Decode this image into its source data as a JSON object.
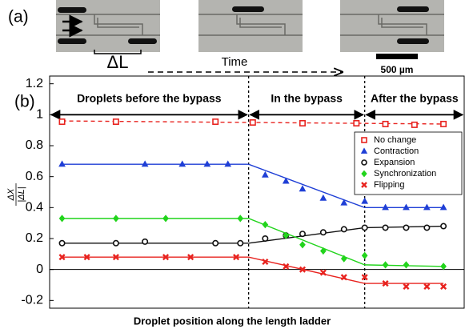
{
  "panel_a": {
    "label": "(a)",
    "delta_label": "ΔL",
    "time_label": "Time",
    "scale_label": "500 µm"
  },
  "chart_data": {
    "type": "scatter",
    "panel_label": "(b)",
    "xlabel": "Droplet position along the length  ladder",
    "ylabel_numerator": "ΔX",
    "ylabel_denominator": "|ΔL|",
    "xlim": [
      0,
      100
    ],
    "ylim": [
      -0.25,
      1.25
    ],
    "yticks": [
      -0.2,
      0,
      0.2,
      0.4,
      0.6,
      0.8,
      1,
      1.2
    ],
    "zero_line": true,
    "grid": false,
    "legend_loc": "upper right",
    "dividers": [
      48,
      76
    ],
    "region_arrow_y": 1.0,
    "region_label_y": 1.1,
    "regions": [
      {
        "label": "Droplets before the bypass",
        "from": 0,
        "to": 48
      },
      {
        "label": "In the bypass",
        "from": 48,
        "to": 76
      },
      {
        "label": "After the bypass",
        "from": 76,
        "to": 100
      }
    ],
    "series": [
      {
        "name": "No change",
        "color": "#e8231f",
        "marker": "square",
        "fill": false,
        "fit_dash": true,
        "x": [
          3,
          16,
          40,
          49,
          61,
          74,
          81,
          88,
          95
        ],
        "values": [
          0.955,
          0.955,
          0.955,
          0.95,
          0.945,
          0.945,
          0.94,
          0.935,
          0.94
        ],
        "fit": {
          "x": [
            3,
            95
          ],
          "values": [
            0.96,
            0.94
          ]
        }
      },
      {
        "name": "Contraction",
        "color": "#1f3fd6",
        "marker": "triangle",
        "fill": true,
        "fit_dash": false,
        "x": [
          3,
          23,
          32,
          38,
          43,
          52,
          57,
          61,
          66,
          71,
          76,
          81,
          86,
          91,
          95
        ],
        "values": [
          0.68,
          0.68,
          0.68,
          0.68,
          0.68,
          0.61,
          0.57,
          0.52,
          0.46,
          0.43,
          0.44,
          0.4,
          0.4,
          0.4,
          0.4
        ],
        "fit": {
          "x": [
            3,
            48,
            76,
            95
          ],
          "values": [
            0.68,
            0.68,
            0.4,
            0.4
          ]
        }
      },
      {
        "name": "Expansion",
        "color": "#111111",
        "marker": "circle",
        "fill": false,
        "fit_dash": false,
        "x": [
          3,
          16,
          23,
          40,
          46,
          52,
          57,
          61,
          66,
          71,
          76,
          81,
          86,
          91,
          95
        ],
        "values": [
          0.17,
          0.17,
          0.18,
          0.17,
          0.17,
          0.2,
          0.22,
          0.23,
          0.24,
          0.26,
          0.27,
          0.27,
          0.27,
          0.27,
          0.28
        ],
        "fit": {
          "x": [
            3,
            48,
            76,
            95
          ],
          "values": [
            0.17,
            0.17,
            0.27,
            0.28
          ]
        }
      },
      {
        "name": "Synchronization",
        "color": "#22d41c",
        "marker": "diamond",
        "fill": true,
        "fit_dash": false,
        "x": [
          3,
          16,
          28,
          46,
          52,
          57,
          61,
          66,
          71,
          76,
          81,
          86,
          95
        ],
        "values": [
          0.33,
          0.33,
          0.33,
          0.33,
          0.29,
          0.22,
          0.16,
          0.12,
          0.07,
          0.09,
          0.03,
          0.03,
          0.02
        ],
        "fit": {
          "x": [
            3,
            48,
            76,
            95
          ],
          "values": [
            0.33,
            0.33,
            0.03,
            0.02
          ]
        }
      },
      {
        "name": "Flipping",
        "color": "#e8231f",
        "marker": "x",
        "fill": true,
        "fit_dash": false,
        "x": [
          3,
          9,
          16,
          28,
          34,
          45,
          52,
          57,
          61,
          66,
          71,
          76,
          81,
          86,
          91,
          95
        ],
        "values": [
          0.08,
          0.08,
          0.08,
          0.08,
          0.08,
          0.08,
          0.05,
          0.02,
          0,
          -0.02,
          -0.05,
          -0.05,
          -0.09,
          -0.11,
          -0.11,
          -0.11
        ],
        "fit": {
          "x": [
            3,
            48,
            76,
            95
          ],
          "values": [
            0.08,
            0.08,
            -0.09,
            -0.09
          ]
        }
      }
    ]
  }
}
